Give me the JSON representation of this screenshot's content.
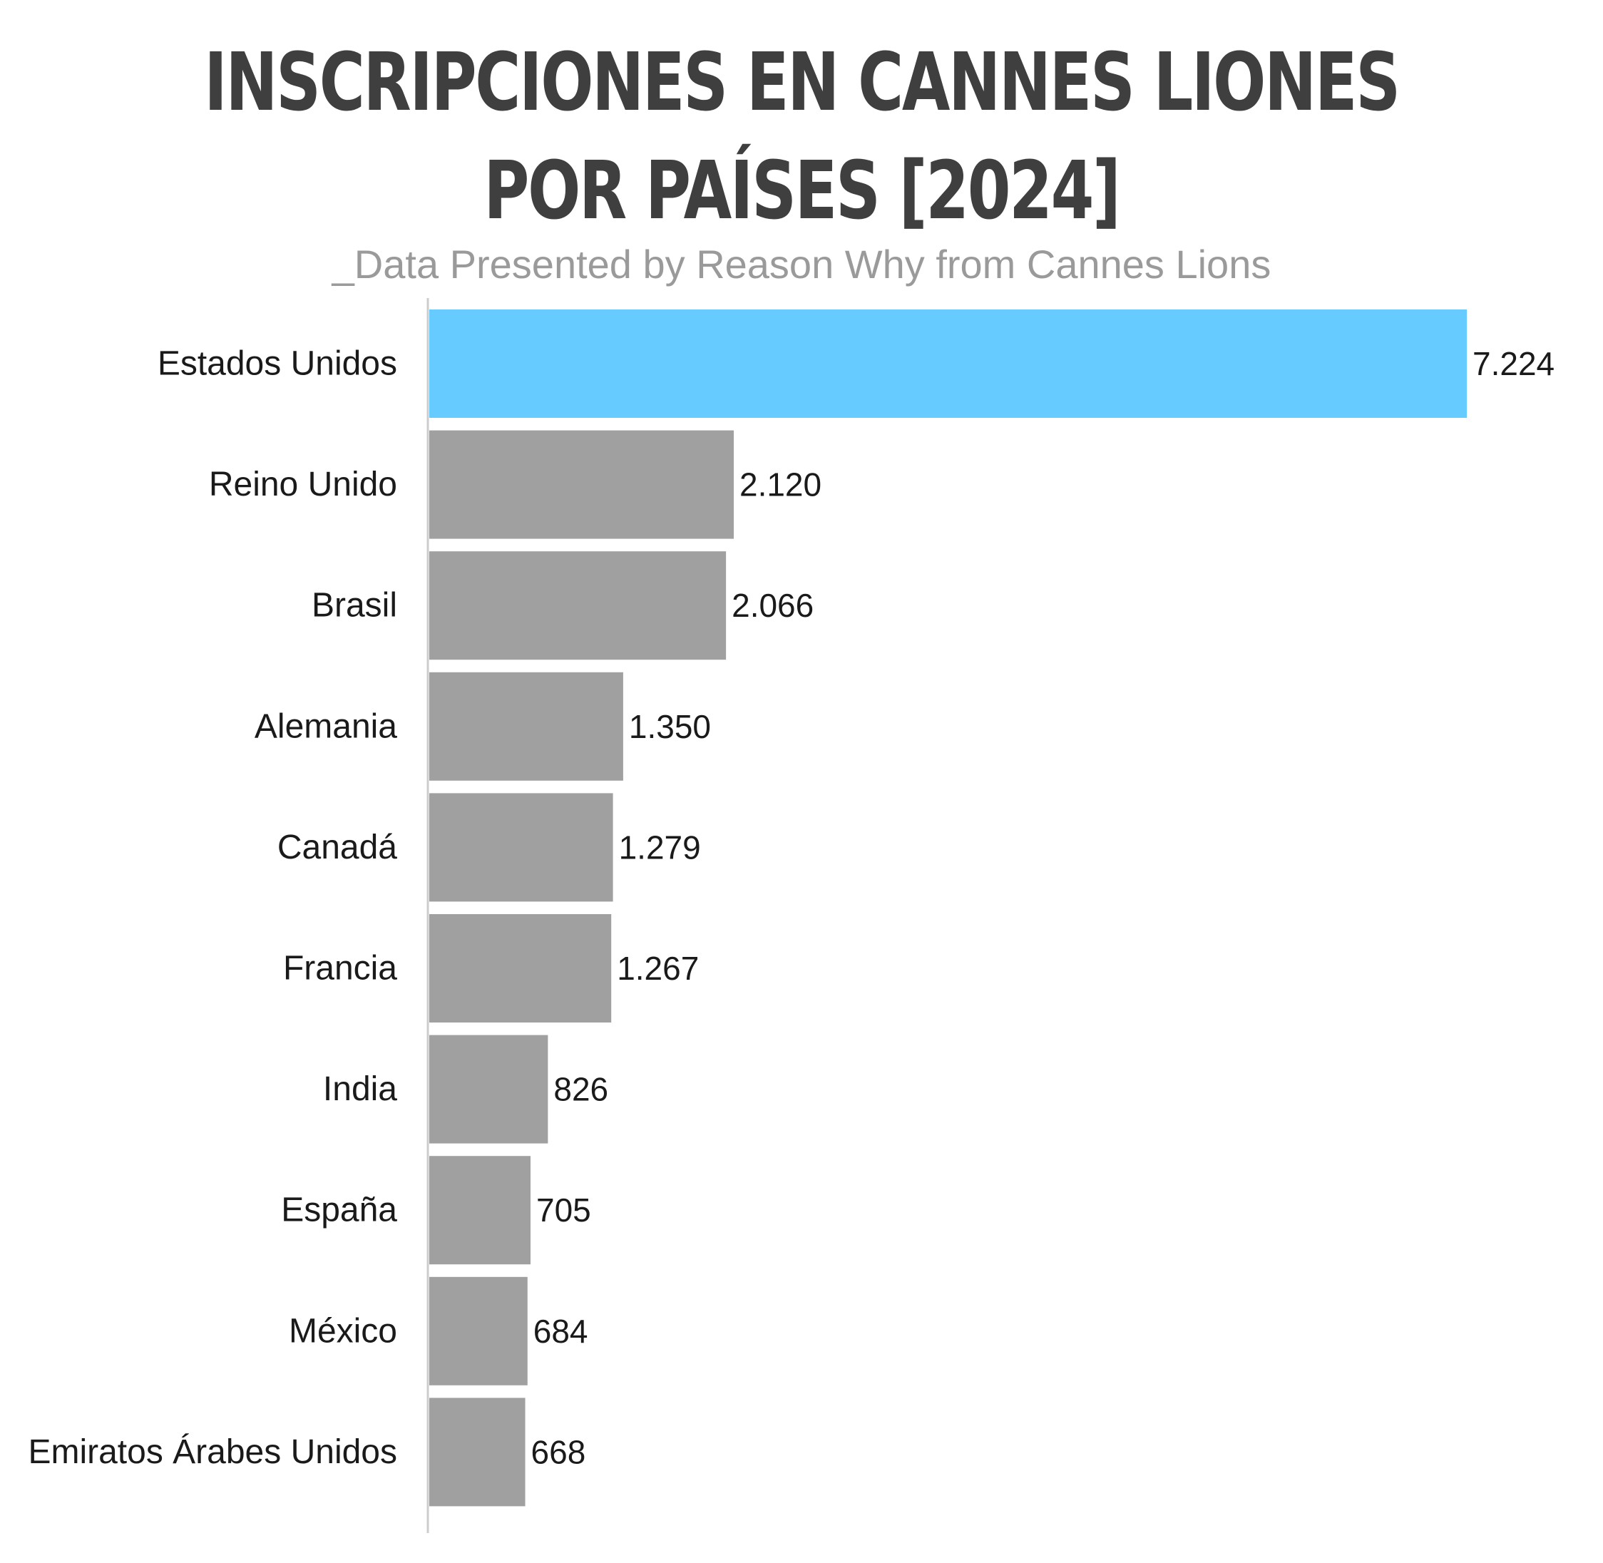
{
  "chart_data": {
    "type": "bar",
    "orientation": "horizontal",
    "title": "INSCRIPCIONES EN CANNES LIONES POR PAÍSES [2024]",
    "subtitle": "_Data Presented by Reason Why from Cannes Lions",
    "categories": [
      "Estados Unidos",
      "Reino Unido",
      "Brasil",
      "Alemania",
      "Canadá",
      "Francia",
      "India",
      "España",
      "México",
      "Emiratos Árabes Unidos"
    ],
    "values": [
      7224,
      2120,
      2066,
      1350,
      1279,
      1267,
      826,
      705,
      684,
      668
    ],
    "value_labels": [
      "7.224",
      "2.120",
      "2.066",
      "1.350",
      "1.279",
      "1.267",
      "826",
      "705",
      "684",
      "668"
    ],
    "xlim": [
      0,
      7224
    ],
    "grid": false,
    "legend": "none",
    "colors": {
      "highlight": "#66ccff",
      "default": "#a0a0a0",
      "axis": "#cccccc"
    }
  }
}
